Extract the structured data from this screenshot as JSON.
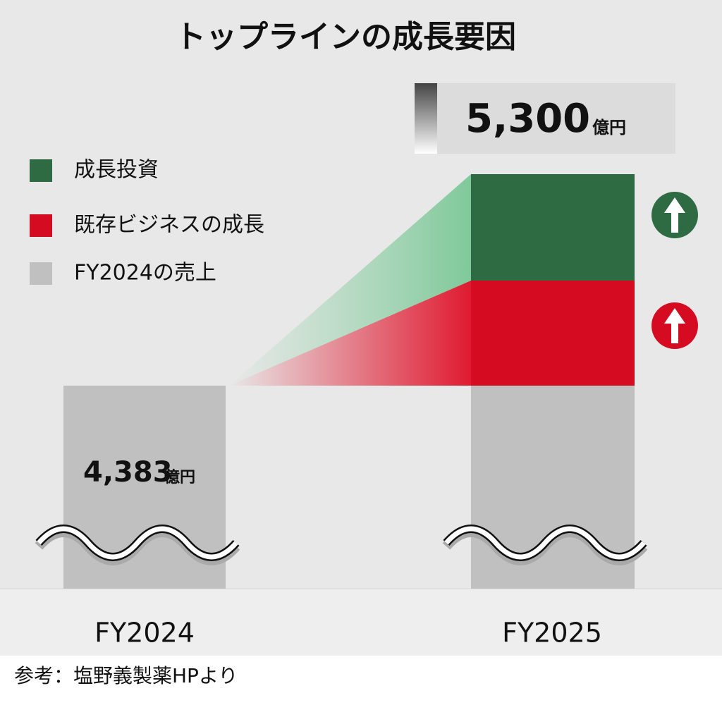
{
  "title": "トップラインの成長要因",
  "total": {
    "value": "5,300",
    "unit": "億円"
  },
  "base": {
    "value": "4,383",
    "unit": "億円"
  },
  "legend": [
    "成長投資",
    "既存ビジネスの成長",
    "FY2024の売上"
  ],
  "categories": [
    "FY2024",
    "FY2025"
  ],
  "source": "参考：塩野義製薬HPより"
}
